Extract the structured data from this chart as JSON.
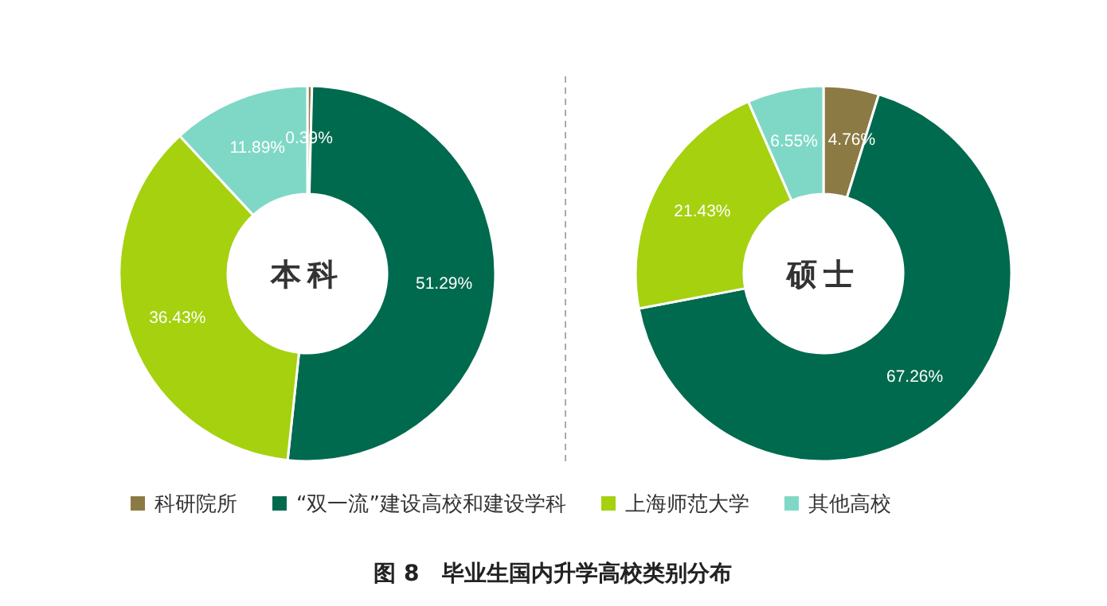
{
  "chart_data": [
    {
      "type": "donut",
      "title": "本科",
      "categories": [
        "科研院所",
        "“双一流”建设高校和建设学科",
        "上海师范大学",
        "其他高校"
      ],
      "values": [
        0.39,
        51.29,
        36.43,
        11.89
      ],
      "value_labels": [
        "0.39%",
        "51.29%",
        "36.43%",
        "11.89%"
      ],
      "colors": [
        "#8c7a45",
        "#006a4e",
        "#a5d10f",
        "#7fd8c6"
      ],
      "legend": "bottom",
      "annotations": [
        "图 8　毕业生国内升学高校类别分布"
      ]
    },
    {
      "type": "donut",
      "title": "硕士",
      "values": [
        4.76,
        67.26,
        21.43,
        6.55
      ],
      "value_labels": [
        "4.76%",
        "67.26%",
        "21.43%",
        "6.55%"
      ],
      "colors": [
        "#8c7a45",
        "#006a4e",
        "#a5d10f",
        "#7fd8c6"
      ]
    }
  ]
}
